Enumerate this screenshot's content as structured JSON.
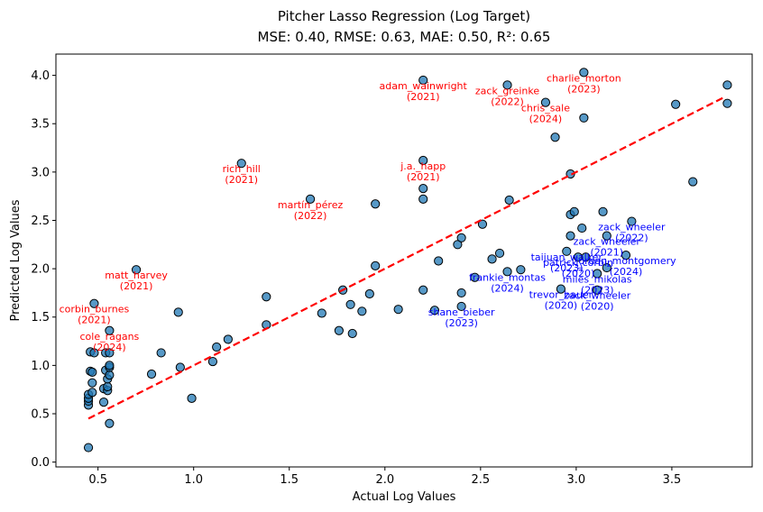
{
  "chart_data": {
    "type": "scatter",
    "title": "Pitcher Lasso Regression (Log Target)",
    "subtitle": "MSE: 0.40, RMSE: 0.63, MAE: 0.50, R²: 0.65",
    "xlabel": "Actual Log Values",
    "ylabel": "Predicted Log Values",
    "xlim": [
      0.28,
      3.92
    ],
    "ylim": [
      -0.05,
      4.22
    ],
    "xticks": [
      0.5,
      1.0,
      1.5,
      2.0,
      2.5,
      3.0,
      3.5
    ],
    "xtick_labels": [
      "0.5",
      "1.0",
      "1.5",
      "2.0",
      "2.5",
      "3.0",
      "3.5"
    ],
    "yticks": [
      0.0,
      0.5,
      1.0,
      1.5,
      2.0,
      2.5,
      3.0,
      3.5,
      4.0
    ],
    "ytick_labels": [
      "0.0",
      "0.5",
      "1.0",
      "1.5",
      "2.0",
      "2.5",
      "3.0",
      "3.5",
      "4.0"
    ],
    "colors": {
      "point_fill": "#1f77b4",
      "point_edge": "#000000",
      "line": "#ff0000",
      "over": "#ff0000",
      "under": "#0000ff"
    },
    "reference_line": {
      "x": [
        0.45,
        3.78
      ],
      "y": [
        0.45,
        3.78
      ],
      "style": "dashed"
    },
    "points": [
      [
        0.45,
        0.15
      ],
      [
        0.45,
        0.59
      ],
      [
        0.45,
        0.63
      ],
      [
        0.45,
        0.66
      ],
      [
        0.45,
        0.7
      ],
      [
        0.46,
        0.94
      ],
      [
        0.46,
        1.14
      ],
      [
        0.47,
        0.82
      ],
      [
        0.47,
        0.72
      ],
      [
        0.47,
        0.93
      ],
      [
        0.48,
        1.64
      ],
      [
        0.48,
        1.13
      ],
      [
        0.53,
        0.62
      ],
      [
        0.53,
        0.76
      ],
      [
        0.54,
        0.95
      ],
      [
        0.54,
        1.13
      ],
      [
        0.55,
        0.74
      ],
      [
        0.55,
        0.78
      ],
      [
        0.55,
        0.86
      ],
      [
        0.56,
        0.4
      ],
      [
        0.56,
        0.9
      ],
      [
        0.56,
        0.98
      ],
      [
        0.56,
        1.0
      ],
      [
        0.56,
        1.13
      ],
      [
        0.56,
        1.36
      ],
      [
        0.7,
        1.99
      ],
      [
        0.78,
        0.91
      ],
      [
        0.83,
        1.13
      ],
      [
        0.92,
        1.55
      ],
      [
        0.93,
        0.98
      ],
      [
        0.99,
        0.66
      ],
      [
        1.1,
        1.04
      ],
      [
        1.12,
        1.19
      ],
      [
        1.18,
        1.27
      ],
      [
        1.25,
        3.09
      ],
      [
        1.38,
        1.42
      ],
      [
        1.38,
        1.71
      ],
      [
        1.61,
        2.72
      ],
      [
        1.67,
        1.54
      ],
      [
        1.76,
        1.36
      ],
      [
        1.78,
        1.78
      ],
      [
        1.82,
        1.63
      ],
      [
        1.83,
        1.33
      ],
      [
        1.88,
        1.56
      ],
      [
        1.92,
        1.74
      ],
      [
        1.95,
        2.67
      ],
      [
        1.95,
        2.03
      ],
      [
        2.07,
        1.58
      ],
      [
        2.2,
        1.78
      ],
      [
        2.2,
        2.72
      ],
      [
        2.2,
        2.83
      ],
      [
        2.2,
        3.12
      ],
      [
        2.2,
        3.95
      ],
      [
        2.26,
        1.57
      ],
      [
        2.28,
        2.08
      ],
      [
        2.38,
        2.25
      ],
      [
        2.4,
        2.32
      ],
      [
        2.4,
        1.75
      ],
      [
        2.4,
        1.61
      ],
      [
        2.47,
        1.91
      ],
      [
        2.51,
        2.46
      ],
      [
        2.56,
        2.1
      ],
      [
        2.6,
        2.16
      ],
      [
        2.64,
        1.97
      ],
      [
        2.64,
        3.9
      ],
      [
        2.65,
        2.71
      ],
      [
        2.71,
        1.99
      ],
      [
        2.84,
        3.72
      ],
      [
        2.89,
        3.36
      ],
      [
        2.92,
        1.79
      ],
      [
        2.95,
        2.18
      ],
      [
        2.97,
        2.98
      ],
      [
        2.97,
        2.56
      ],
      [
        2.97,
        2.34
      ],
      [
        2.99,
        2.59
      ],
      [
        3.01,
        2.12
      ],
      [
        3.03,
        2.42
      ],
      [
        3.04,
        4.03
      ],
      [
        3.04,
        3.56
      ],
      [
        3.05,
        2.12
      ],
      [
        3.11,
        1.95
      ],
      [
        3.11,
        1.78
      ],
      [
        3.14,
        2.59
      ],
      [
        3.16,
        2.34
      ],
      [
        3.16,
        2.01
      ],
      [
        3.26,
        2.14
      ],
      [
        3.29,
        2.49
      ],
      [
        3.52,
        3.7
      ],
      [
        3.61,
        2.9
      ],
      [
        3.79,
        3.9
      ],
      [
        3.79,
        3.71
      ]
    ],
    "annotations": [
      {
        "name": "adam_wainwright",
        "year": "(2021)",
        "x": 2.2,
        "y": 3.95,
        "type": "over"
      },
      {
        "name": "zack_greinke",
        "year": "(2022)",
        "x": 2.64,
        "y": 3.9,
        "type": "over"
      },
      {
        "name": "charlie_morton",
        "year": "(2023)",
        "x": 3.04,
        "y": 4.03,
        "type": "over"
      },
      {
        "name": "chris_sale",
        "year": "(2024)",
        "x": 2.84,
        "y": 3.72,
        "type": "over"
      },
      {
        "name": "rich_hill",
        "year": "(2021)",
        "x": 1.25,
        "y": 3.09,
        "type": "over"
      },
      {
        "name": "j.a._happ",
        "year": "(2021)",
        "x": 2.2,
        "y": 3.12,
        "type": "over"
      },
      {
        "name": "martín_pérez",
        "year": "(2022)",
        "x": 1.61,
        "y": 2.72,
        "type": "over"
      },
      {
        "name": "matt_harvey",
        "year": "(2021)",
        "x": 0.7,
        "y": 1.99,
        "type": "over"
      },
      {
        "name": "corbin_burnes",
        "year": "(2021)",
        "x": 0.48,
        "y": 1.64,
        "type": "over"
      },
      {
        "name": "cole_ragans",
        "year": "(2024)",
        "x": 0.56,
        "y": 1.36,
        "type": "over"
      },
      {
        "name": "zack_wheeler",
        "year": "(2022)",
        "x": 3.29,
        "y": 2.49,
        "type": "under"
      },
      {
        "name": "zack_wheeler",
        "year": "(2021)",
        "x": 3.16,
        "y": 2.34,
        "type": "under"
      },
      {
        "name": "taijuan_walker",
        "year": "(2023)",
        "x": 2.95,
        "y": 2.18,
        "type": "under"
      },
      {
        "name": "patrick_corbin",
        "year": "(2020)",
        "x": 3.01,
        "y": 2.12,
        "type": "under"
      },
      {
        "name": "jordan_montgomery",
        "year": "(2024)",
        "x": 3.26,
        "y": 2.14,
        "type": "under"
      },
      {
        "name": "frankie_montas",
        "year": "(2024)",
        "x": 2.64,
        "y": 1.97,
        "type": "under"
      },
      {
        "name": "miles_mikolas",
        "year": "(2023)",
        "x": 3.11,
        "y": 1.95,
        "type": "under"
      },
      {
        "name": "trevor_bauer",
        "year": "(2020)",
        "x": 2.92,
        "y": 1.79,
        "type": "under"
      },
      {
        "name": "zack_wheeler",
        "year": "(2020)",
        "x": 3.11,
        "y": 1.78,
        "type": "under"
      },
      {
        "name": "shane_bieber",
        "year": "(2023)",
        "x": 2.4,
        "y": 1.61,
        "type": "under"
      }
    ]
  }
}
